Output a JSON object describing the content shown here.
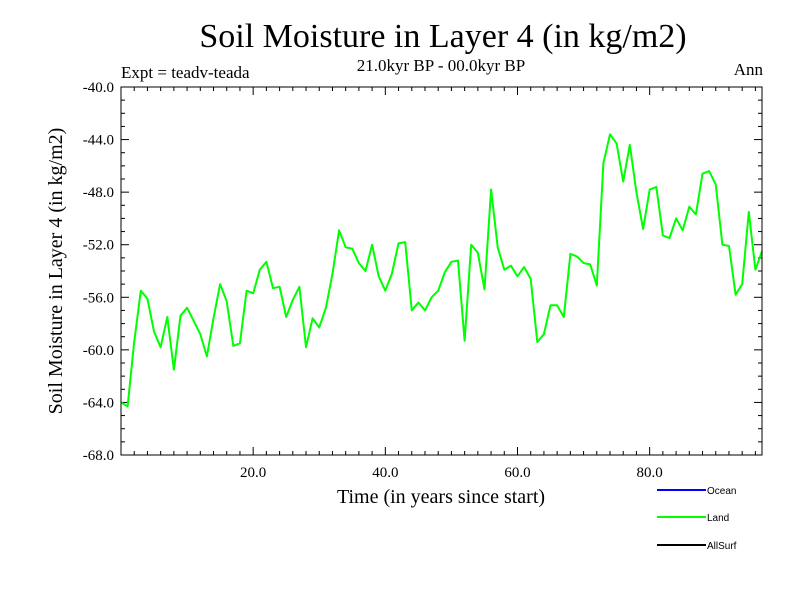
{
  "chart_data": {
    "type": "line",
    "title": "Soil Moisture in Layer 4 (in kg/m2)",
    "subtitle": "21.0kyr BP - 00.0kyr BP",
    "left_note": "Expt = teadv-teada",
    "right_note": "Ann",
    "xlabel": "Time (in years since start)",
    "ylabel": "Soil Moisture in Layer 4 (in kg/m2)",
    "xlim": [
      0,
      97
    ],
    "ylim": [
      -68.0,
      -40.0
    ],
    "xticks": [
      20,
      40,
      60,
      80
    ],
    "xtick_labels": [
      "20.0",
      "40.0",
      "60.0",
      "80.0"
    ],
    "yticks": [
      -68,
      -64,
      -60,
      -56,
      -52,
      -48,
      -44,
      -40
    ],
    "ytick_labels": [
      "-68.0",
      "-64.0",
      "-60.0",
      "-56.0",
      "-52.0",
      "-48.0",
      "-44.0",
      "-40.0"
    ],
    "legend": [
      "Ocean",
      "Land",
      "AllSurf"
    ],
    "series": [
      {
        "name": "Land",
        "color": "#00ff00",
        "x": [
          0,
          1,
          2,
          3,
          4,
          5,
          6,
          7,
          8,
          9,
          10,
          11,
          12,
          13,
          14,
          15,
          16,
          17,
          18,
          19,
          20,
          21,
          22,
          23,
          24,
          25,
          26,
          27,
          28,
          29,
          30,
          31,
          32,
          33,
          34,
          35,
          36,
          37,
          38,
          39,
          40,
          41,
          42,
          43,
          44,
          45,
          46,
          47,
          48,
          49,
          50,
          51,
          52,
          53,
          54,
          55,
          56,
          57,
          58,
          59,
          60,
          61,
          62,
          63,
          64,
          65,
          66,
          67,
          68,
          69,
          70,
          71,
          72,
          73,
          74,
          75,
          76,
          77,
          78,
          79,
          80,
          81,
          82,
          83,
          84,
          85,
          86,
          87,
          88,
          89,
          90,
          91,
          92,
          93,
          94,
          95,
          96,
          97
        ],
        "values": [
          -64.0,
          -64.3,
          -59.4,
          -55.5,
          -56.1,
          -58.6,
          -59.8,
          -57.5,
          -61.5,
          -57.4,
          -56.8,
          -57.8,
          -58.8,
          -60.5,
          -57.6,
          -55.0,
          -56.3,
          -59.7,
          -59.5,
          -55.5,
          -55.7,
          -53.9,
          -53.3,
          -55.3,
          -55.2,
          -57.5,
          -56.2,
          -55.2,
          -59.8,
          -57.6,
          -58.3,
          -56.8,
          -54.2,
          -50.9,
          -52.2,
          -52.3,
          -53.4,
          -54.0,
          -52.0,
          -54.4,
          -55.5,
          -54.2,
          -51.9,
          -51.8,
          -57.0,
          -56.4,
          -57.0,
          -56.0,
          -55.5,
          -54.1,
          -53.3,
          -53.2,
          -59.3,
          -52.0,
          -52.6,
          -55.4,
          -47.8,
          -52.2,
          -53.9,
          -53.6,
          -54.4,
          -53.7,
          -54.6,
          -59.4,
          -58.8,
          -56.6,
          -56.6,
          -57.5,
          -52.7,
          -52.9,
          -53.4,
          -53.5,
          -55.1,
          -45.8,
          -43.6,
          -44.3,
          -47.2,
          -44.4,
          -48.0,
          -50.8,
          -47.8,
          -47.6,
          -51.3,
          -51.5,
          -50.0,
          -50.9,
          -49.1,
          -49.7,
          -46.6,
          -46.4,
          -47.4,
          -52.0,
          -52.1,
          -55.8,
          -55.0,
          -49.5,
          -53.9,
          -52.5
        ]
      }
    ]
  },
  "legend_colors": {
    "Ocean": "#0000ff",
    "Land": "#00ff00",
    "AllSurf": "#000000"
  }
}
